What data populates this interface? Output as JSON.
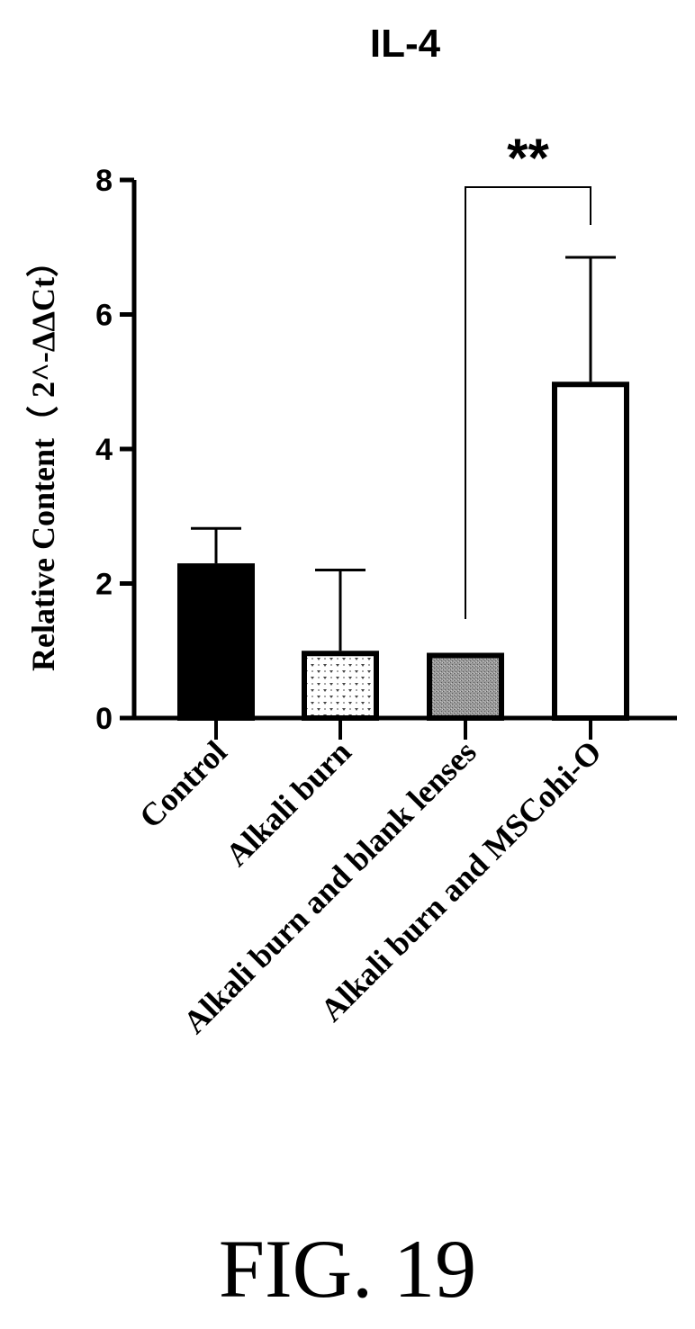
{
  "chart_data": {
    "type": "bar",
    "title": "IL-4",
    "xlabel": "",
    "ylabel": "Relative Content（ 2^-ΔΔCt）",
    "ylim": [
      0,
      8
    ],
    "yticks": [
      0,
      2,
      4,
      6,
      8
    ],
    "categories": [
      "Control",
      "Alkali burn",
      "Alkali burn and blank lenses",
      "Alkali burn and MSCohi-O"
    ],
    "values": [
      2.3,
      1.0,
      0.97,
      5.0
    ],
    "error_upper": [
      0.52,
      1.2,
      0.0,
      1.85
    ],
    "fill_styles": [
      "solid-black",
      "dotted-pattern",
      "gray-stipple",
      "white"
    ],
    "significance": {
      "label": "**",
      "from_category": 2,
      "to_category": 3
    },
    "grid": false,
    "legend": "none"
  },
  "caption": "FIG. 19"
}
